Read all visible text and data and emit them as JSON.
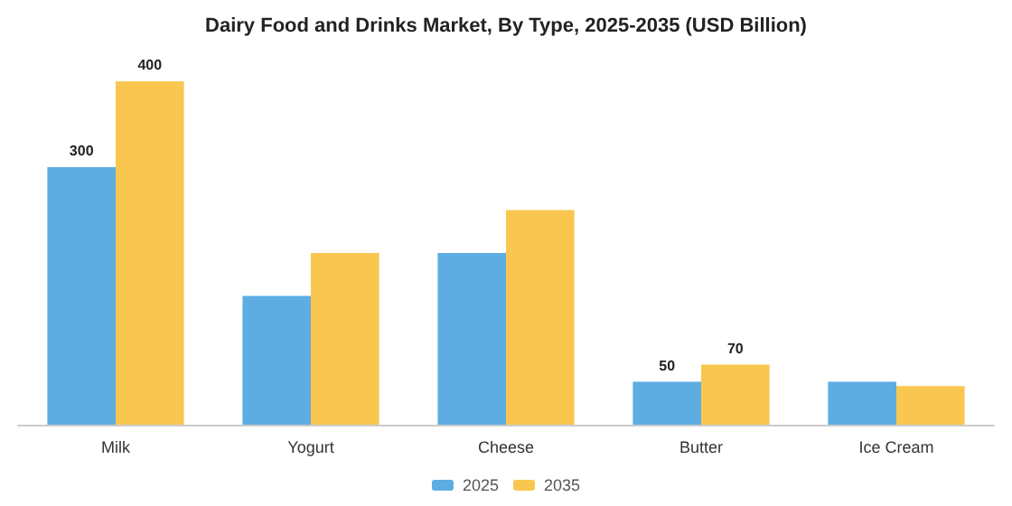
{
  "chart_data": {
    "type": "bar",
    "title": "Dairy Food and Drinks Market, By Type, 2025-2035 (USD Billion)",
    "categories": [
      "Milk",
      "Yogurt",
      "Cheese",
      "Butter",
      "Ice Cream"
    ],
    "series": [
      {
        "name": "2025",
        "color": "#5dade2",
        "values": [
          300,
          150,
          200,
          50,
          50
        ],
        "value_labels": [
          "300",
          null,
          null,
          "50",
          null
        ]
      },
      {
        "name": "2035",
        "color": "#f9c74f",
        "values": [
          400,
          200,
          250,
          70,
          45
        ],
        "value_labels": [
          "400",
          null,
          null,
          "70",
          null
        ]
      }
    ],
    "legend": "bottom",
    "grid": false
  }
}
